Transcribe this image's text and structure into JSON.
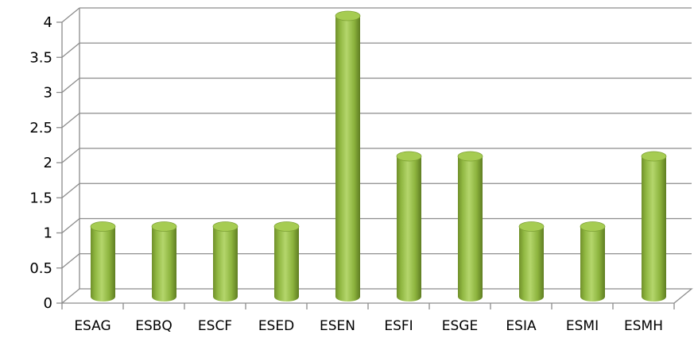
{
  "chart_data": {
    "type": "bar",
    "style": "3d-cylinder",
    "title": "",
    "xlabel": "",
    "ylabel": "",
    "categories": [
      "ESAG",
      "ESBQ",
      "ESCF",
      "ESED",
      "ESEN",
      "ESFI",
      "ESGE",
      "ESIA",
      "ESMI",
      "ESMH"
    ],
    "values": [
      1,
      1,
      1,
      1,
      4,
      2,
      2,
      1,
      1,
      2
    ],
    "ylim": [
      0,
      4
    ],
    "yticks": [
      {
        "value": 0,
        "label": "0"
      },
      {
        "value": 0.5,
        "label": "0.5"
      },
      {
        "value": 1,
        "label": "1"
      },
      {
        "value": 1.5,
        "label": "1.5"
      },
      {
        "value": 2,
        "label": "2"
      },
      {
        "value": 2.5,
        "label": "2.5"
      },
      {
        "value": 3,
        "label": "3"
      },
      {
        "value": 3.5,
        "label": "3.5"
      },
      {
        "value": 4,
        "label": "4"
      }
    ],
    "grid": true,
    "legend": "none",
    "bar_color": "#8db43e",
    "bar_top_color": "#a6cc52",
    "bar_shadow_color": "#5f7d22",
    "grid_color": "#8c8c8c",
    "axis_color": "#8c8c8c"
  }
}
